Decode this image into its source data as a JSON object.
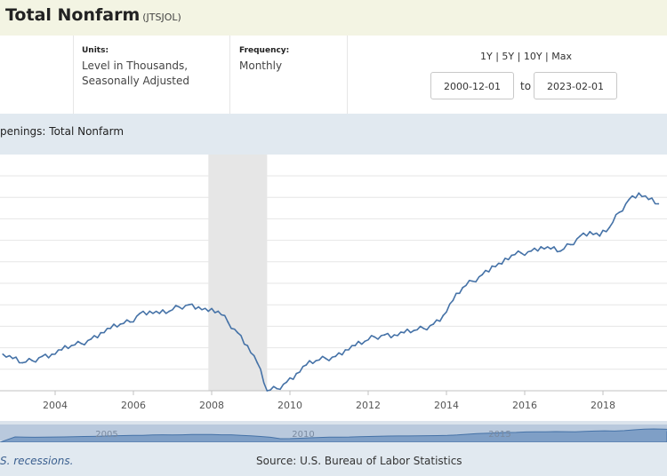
{
  "header": {
    "title": "Total Nonfarm",
    "series_id": "(JTSJOL)"
  },
  "meta": {
    "units_label": "Units:",
    "units_line1": "Level in Thousands,",
    "units_line2": "Seasonally Adjusted",
    "frequency_label": "Frequency:",
    "frequency_value": "Monthly"
  },
  "range": {
    "link_1y": "1Y",
    "link_5y": "5Y",
    "link_10y": "10Y",
    "link_max": "Max",
    "separator": " | ",
    "start_date": "2000-12-01",
    "to_label": "to",
    "end_date": "2023-02-01"
  },
  "chart_header": {
    "title": "penings: Total Nonfarm"
  },
  "footer": {
    "note": "S. recessions.",
    "source": "Source: U.S. Bureau of Labor Statistics"
  },
  "colors": {
    "line": "#4572a7",
    "recession": "#e6e6e6",
    "grid": "#e6e6e6",
    "header_bg": "#e1e9f0",
    "title_bg": "#f3f4e3"
  },
  "chart_data": {
    "type": "line",
    "x_tick_labels": [
      "2004",
      "2006",
      "2008",
      "2010",
      "2012",
      "2014",
      "2016",
      "2018"
    ],
    "navigator_tick_labels": [
      "2005",
      "2010",
      "2015"
    ],
    "recession": {
      "start": "2007-12",
      "end": "2009-06"
    },
    "grid": true,
    "series": [
      {
        "x": [
          "2002-09",
          "2002-12",
          "2003-03",
          "2003-06",
          "2003-09",
          "2003-12",
          "2004-03",
          "2004-06",
          "2004-09",
          "2004-12",
          "2005-03",
          "2005-06",
          "2005-09",
          "2005-12",
          "2006-03",
          "2006-06",
          "2006-09",
          "2006-12",
          "2007-03",
          "2007-06",
          "2007-09",
          "2007-12",
          "2008-03",
          "2008-06",
          "2008-09",
          "2008-12",
          "2009-03",
          "2009-06",
          "2009-09",
          "2009-12",
          "2010-03",
          "2010-06",
          "2010-09",
          "2010-12",
          "2011-03",
          "2011-06",
          "2011-09",
          "2011-12",
          "2012-03",
          "2012-06",
          "2012-09",
          "2012-12",
          "2013-03",
          "2013-06",
          "2013-09",
          "2013-12",
          "2014-03",
          "2014-06",
          "2014-09",
          "2014-12",
          "2015-03",
          "2015-06",
          "2015-09",
          "2015-12",
          "2016-03",
          "2016-06",
          "2016-09",
          "2016-12",
          "2017-03",
          "2017-06",
          "2017-09",
          "2017-12",
          "2018-03",
          "2018-06",
          "2018-09",
          "2018-12",
          "2019-03",
          "2019-06"
        ],
        "values": [
          3.35,
          3.25,
          3.15,
          3.2,
          3.3,
          3.35,
          3.45,
          3.55,
          3.6,
          3.7,
          3.85,
          3.95,
          4.05,
          4.1,
          4.3,
          4.35,
          4.3,
          4.35,
          4.45,
          4.5,
          4.45,
          4.35,
          4.35,
          4.1,
          3.85,
          3.55,
          3.15,
          2.5,
          2.55,
          2.7,
          2.9,
          3.1,
          3.2,
          3.25,
          3.3,
          3.45,
          3.55,
          3.65,
          3.75,
          3.8,
          3.8,
          3.85,
          3.9,
          3.95,
          4.05,
          4.25,
          4.6,
          4.9,
          5.05,
          5.2,
          5.4,
          5.45,
          5.65,
          5.7,
          5.75,
          5.85,
          5.8,
          5.75,
          5.9,
          6.1,
          6.2,
          6.1,
          6.3,
          6.65,
          6.95,
          7.1,
          6.95,
          6.85
        ]
      }
    ],
    "y_range": [
      2.5,
      7.5
    ]
  }
}
